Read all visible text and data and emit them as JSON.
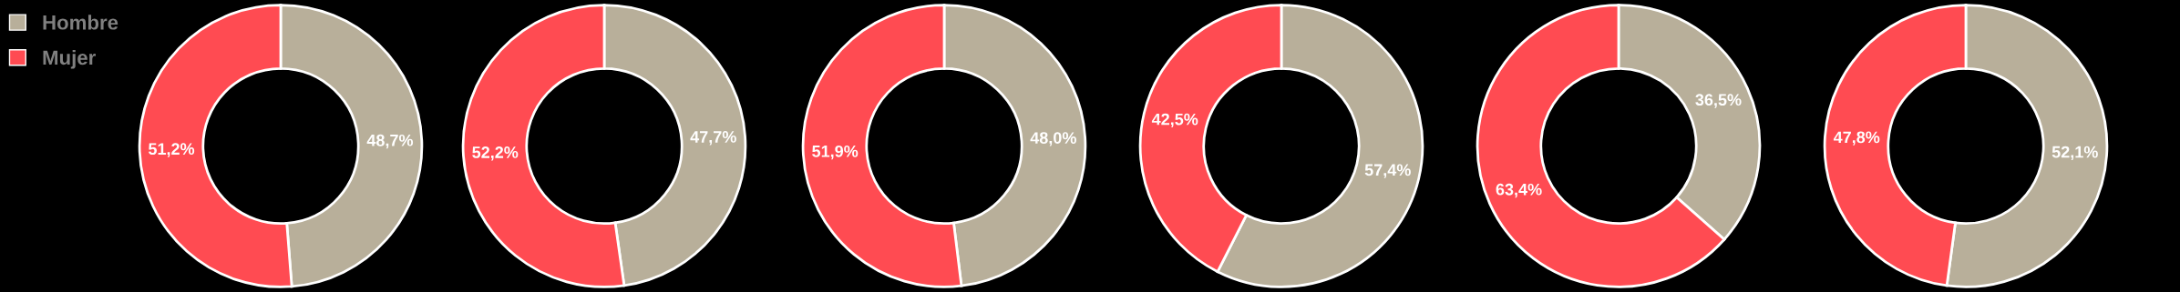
{
  "chart_data": [
    {
      "type": "donut",
      "categories": [
        "Hombre",
        "Mujer"
      ],
      "values": [
        48.7,
        51.2
      ],
      "colors": [
        "#b8af9a",
        "#ff4b52"
      ],
      "value_labels": [
        "48,7%",
        "51,2%"
      ],
      "legend": "top left"
    },
    {
      "type": "donut",
      "categories": [
        null,
        null
      ],
      "values": [
        47.7,
        52.2
      ],
      "colors": [
        "#b8af9a",
        "#ff4b52"
      ],
      "value_labels": [
        "47,7%",
        "52,2%"
      ]
    },
    {
      "type": "donut",
      "categories": [
        null,
        null
      ],
      "values": [
        48.0,
        51.9
      ],
      "colors": [
        "#b8af9a",
        "#ff4b52"
      ],
      "value_labels": [
        "48,0%",
        "51,9%"
      ]
    },
    {
      "type": "donut",
      "categories": [
        null,
        null
      ],
      "values": [
        57.4,
        42.5
      ],
      "colors": [
        "#b8af9a",
        "#ff4b52"
      ],
      "value_labels": [
        "57,4%",
        "42,5%"
      ]
    },
    {
      "type": "donut",
      "categories": [
        null,
        null
      ],
      "values": [
        36.5,
        63.4
      ],
      "colors": [
        "#b8af9a",
        "#ff4b52"
      ],
      "value_labels": [
        "36,5%",
        "63,4%"
      ]
    },
    {
      "type": "donut",
      "categories": [
        null,
        null
      ],
      "values": [
        52.1,
        47.8
      ],
      "colors": [
        "#b8af9a",
        "#ff4b52"
      ],
      "value_labels": [
        "52,1%",
        "47,8%"
      ]
    }
  ]
}
